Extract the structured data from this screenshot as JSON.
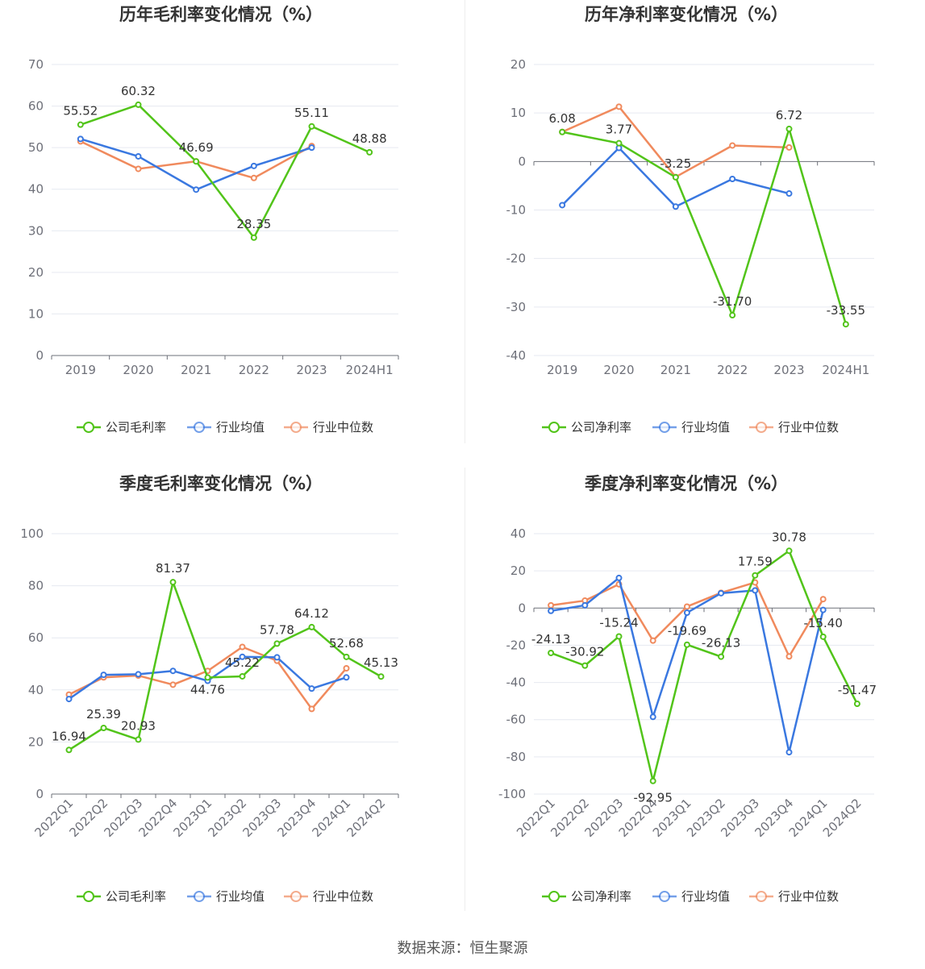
{
  "chart_data": [
    {
      "type": "line",
      "title": "历年毛利率变化情况（%）",
      "x": [
        "2019",
        "2020",
        "2021",
        "2022",
        "2023",
        "2024H1"
      ],
      "ylim": [
        0,
        70
      ],
      "yticks": [
        0,
        10,
        20,
        30,
        40,
        50,
        60,
        70
      ],
      "grid": true,
      "legend_position": "bottom",
      "series": [
        {
          "name": "公司毛利率",
          "color": "#52c41a",
          "values": [
            55.52,
            60.32,
            46.69,
            28.35,
            55.11,
            48.88
          ],
          "labels": [
            "55.52",
            "60.32",
            "46.69",
            "28.35",
            "55.11",
            "48.88"
          ]
        },
        {
          "name": "行业均值",
          "color": "#3a78e0",
          "values": [
            52.1,
            47.9,
            39.9,
            45.6,
            50.0,
            null
          ]
        },
        {
          "name": "行业中位数",
          "color": "#f08a5d",
          "values": [
            51.5,
            44.9,
            46.7,
            42.7,
            50.4,
            null
          ]
        }
      ]
    },
    {
      "type": "line",
      "title": "历年净利率变化情况（%）",
      "x": [
        "2019",
        "2020",
        "2021",
        "2022",
        "2023",
        "2024H1"
      ],
      "ylim": [
        -40,
        20
      ],
      "yticks": [
        -40,
        -30,
        -20,
        -10,
        0,
        10,
        20
      ],
      "grid": true,
      "legend_position": "bottom",
      "series": [
        {
          "name": "公司净利率",
          "color": "#52c41a",
          "values": [
            6.08,
            3.77,
            -3.25,
            -31.7,
            6.72,
            -33.55
          ],
          "labels": [
            "6.08",
            "3.77",
            "-3.25",
            "-31.70",
            "6.72",
            "-33.55"
          ]
        },
        {
          "name": "行业均值",
          "color": "#3a78e0",
          "values": [
            -9.0,
            2.8,
            -9.3,
            -3.6,
            -6.6,
            null
          ]
        },
        {
          "name": "行业中位数",
          "color": "#f08a5d",
          "values": [
            6.1,
            11.3,
            -3.2,
            3.3,
            2.9,
            null
          ]
        }
      ]
    },
    {
      "type": "line",
      "title": "季度毛利率变化情况（%）",
      "x": [
        "2022Q1",
        "2022Q2",
        "2022Q3",
        "2022Q4",
        "2023Q1",
        "2023Q2",
        "2023Q3",
        "2023Q4",
        "2024Q1",
        "2024Q2"
      ],
      "ylim": [
        0,
        100
      ],
      "yticks": [
        0,
        20,
        40,
        60,
        80,
        100
      ],
      "grid": true,
      "legend_position": "bottom",
      "series": [
        {
          "name": "公司毛利率",
          "color": "#52c41a",
          "values": [
            16.94,
            25.39,
            20.93,
            81.37,
            44.76,
            45.22,
            57.78,
            64.12,
            52.68,
            45.13
          ],
          "labels": [
            "16.94",
            "25.39",
            "20.93",
            "81.37",
            "44.76",
            "45.22",
            "57.78",
            "64.12",
            "52.68",
            "45.13"
          ]
        },
        {
          "name": "行业均值",
          "color": "#3a78e0",
          "values": [
            36.5,
            45.8,
            46.0,
            47.3,
            43.5,
            52.7,
            52.5,
            40.5,
            44.8,
            null
          ]
        },
        {
          "name": "行业中位数",
          "color": "#f08a5d",
          "values": [
            38.2,
            44.8,
            45.5,
            42.0,
            47.3,
            56.5,
            51.2,
            32.7,
            48.3,
            null
          ]
        }
      ]
    },
    {
      "type": "line",
      "title": "季度净利率变化情况（%）",
      "x": [
        "2022Q1",
        "2022Q2",
        "2022Q3",
        "2022Q4",
        "2023Q1",
        "2023Q2",
        "2023Q3",
        "2023Q4",
        "2024Q1",
        "2024Q2"
      ],
      "ylim": [
        -100,
        40
      ],
      "yticks": [
        -100,
        -80,
        -60,
        -40,
        -20,
        0,
        20,
        40
      ],
      "grid": true,
      "legend_position": "bottom",
      "series": [
        {
          "name": "公司净利率",
          "color": "#52c41a",
          "values": [
            -24.13,
            -30.92,
            -15.24,
            -92.95,
            -19.69,
            -26.13,
            17.59,
            30.78,
            -15.4,
            -51.47
          ],
          "labels": [
            "-24.13",
            "-30.92",
            "-15.24",
            "-92.95",
            "-19.69",
            "-26.13",
            "17.59",
            "30.78",
            "-15.40",
            "-51.47"
          ]
        },
        {
          "name": "行业均值",
          "color": "#3a78e0",
          "values": [
            -1.5,
            1.5,
            16.2,
            -58.5,
            -2.5,
            8.0,
            9.5,
            -77.5,
            -1.0,
            null
          ]
        },
        {
          "name": "行业中位数",
          "color": "#f08a5d",
          "values": [
            1.5,
            4.0,
            12.8,
            -17.5,
            0.8,
            8.2,
            13.8,
            -26.0,
            4.8,
            null
          ]
        }
      ]
    }
  ],
  "footer": {
    "source": "数据来源：恒生聚源"
  }
}
